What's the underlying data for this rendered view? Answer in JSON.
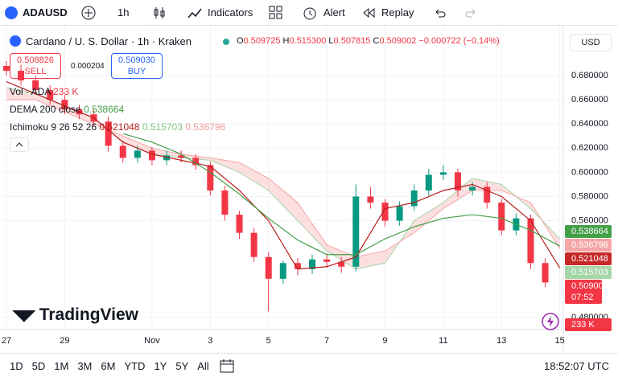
{
  "toolbar": {
    "symbol": "ADAUSD",
    "interval": "1h",
    "indicators": "Indicators",
    "alert": "Alert",
    "replay": "Replay"
  },
  "legend": {
    "title": "Cardano / U. S. Dollar · 1h · Kraken",
    "o_label": "O",
    "o": "0.509725",
    "h_label": "H",
    "h": "0.515300",
    "l_label": "L",
    "l": "0.507815",
    "c_label": "C",
    "c": "0.509002",
    "change": "−0.000722 (−0.14%)",
    "sell_price": "0.508826",
    "sell": "SELL",
    "spread": "0.000204",
    "buy_price": "0.509030",
    "buy": "BUY",
    "vol_name": "Vol · ADA",
    "vol_value": "233 K",
    "dema_name": "DEMA 200 close",
    "dema_value": "0.538664",
    "ichimoku_name": "Ichimoku 9 26 52 26",
    "ichimoku_v1": "0.521048",
    "ichimoku_v2": "0.515703",
    "ichimoku_v3": "0.536796"
  },
  "currency": "USD",
  "price_tags": [
    {
      "label": "0.538664",
      "color": "#43a047"
    },
    {
      "label": "0.536796",
      "color": "#f5a6a6"
    },
    {
      "label": "0.521048",
      "color": "#c62828"
    },
    {
      "label": "0.515703",
      "color": "#a5d6a7"
    },
    {
      "label": "0.509002",
      "sub": "07:52",
      "color": "#f23645"
    },
    {
      "label": "233 K",
      "color": "#f23645"
    }
  ],
  "logo": "TradingView",
  "chart_data": {
    "type": "candlestick",
    "xlim": [
      -0.22,
      19.12
    ],
    "ylim": [
      0.47,
      0.7013
    ],
    "xticks": [
      {
        "value": 0,
        "label": "27"
      },
      {
        "value": 2,
        "label": "29"
      },
      {
        "value": 5,
        "label": "Nov"
      },
      {
        "value": 7,
        "label": "3"
      },
      {
        "value": 9,
        "label": "5"
      },
      {
        "value": 11,
        "label": "7"
      },
      {
        "value": 13,
        "label": "9"
      },
      {
        "value": 15,
        "label": "11"
      },
      {
        "value": 17,
        "label": "13"
      },
      {
        "value": 19,
        "label": "15"
      }
    ],
    "yticks": [
      {
        "value": 0.68,
        "label": "0.680000"
      },
      {
        "value": 0.66,
        "label": "0.660000"
      },
      {
        "value": 0.64,
        "label": "0.640000"
      },
      {
        "value": 0.62,
        "label": "0.620000"
      },
      {
        "value": 0.6,
        "label": "0.600000"
      },
      {
        "value": 0.58,
        "label": "0.580000"
      },
      {
        "value": 0.56,
        "label": "0.560000"
      },
      {
        "value": 0.48,
        "label": "0.480000"
      }
    ],
    "up_color": "#089981",
    "down_color": "#f23645",
    "candles": {
      "x": [
        0,
        0.5,
        1,
        1.5,
        2,
        2.5,
        3,
        3.5,
        4,
        4.5,
        5,
        5.5,
        6,
        6.5,
        7,
        7.5,
        8,
        8.5,
        9,
        9.5,
        10,
        10.5,
        11,
        11.5,
        12,
        12.5,
        13,
        13.5,
        14,
        14.5,
        15,
        15.5,
        16,
        16.5,
        17,
        17.5,
        18,
        18.5
      ],
      "open": [
        0.688,
        0.684,
        0.676,
        0.668,
        0.66,
        0.652,
        0.648,
        0.642,
        0.622,
        0.612,
        0.618,
        0.61,
        0.614,
        0.612,
        0.606,
        0.585,
        0.565,
        0.55,
        0.53,
        0.512,
        0.525,
        0.52,
        0.528,
        0.526,
        0.522,
        0.58,
        0.575,
        0.56,
        0.572,
        0.585,
        0.598,
        0.6,
        0.585,
        0.588,
        0.575,
        0.552,
        0.562,
        0.525
      ],
      "high": [
        0.692,
        0.689,
        0.68,
        0.672,
        0.664,
        0.656,
        0.652,
        0.646,
        0.626,
        0.622,
        0.621,
        0.618,
        0.618,
        0.615,
        0.609,
        0.589,
        0.568,
        0.554,
        0.534,
        0.527,
        0.529,
        0.532,
        0.533,
        0.53,
        0.59,
        0.588,
        0.578,
        0.576,
        0.59,
        0.603,
        0.606,
        0.603,
        0.592,
        0.592,
        0.578,
        0.566,
        0.565,
        0.529
      ],
      "low": [
        0.68,
        0.672,
        0.664,
        0.656,
        0.648,
        0.644,
        0.638,
        0.617,
        0.608,
        0.608,
        0.606,
        0.606,
        0.608,
        0.602,
        0.581,
        0.56,
        0.545,
        0.526,
        0.485,
        0.508,
        0.515,
        0.516,
        0.521,
        0.517,
        0.518,
        0.57,
        0.555,
        0.556,
        0.568,
        0.581,
        0.594,
        0.58,
        0.581,
        0.57,
        0.548,
        0.548,
        0.52,
        0.505
      ],
      "close": [
        0.684,
        0.676,
        0.668,
        0.66,
        0.652,
        0.648,
        0.642,
        0.622,
        0.612,
        0.618,
        0.61,
        0.614,
        0.612,
        0.606,
        0.585,
        0.565,
        0.55,
        0.53,
        0.512,
        0.525,
        0.52,
        0.528,
        0.526,
        0.522,
        0.58,
        0.575,
        0.56,
        0.572,
        0.585,
        0.598,
        0.6,
        0.585,
        0.588,
        0.575,
        0.552,
        0.562,
        0.525,
        0.509
      ]
    },
    "dema": {
      "color": "#43a047",
      "x": [
        4,
        5,
        6,
        7,
        8,
        9,
        10,
        11,
        12,
        13,
        14,
        15,
        16,
        17,
        18,
        19
      ],
      "values": [
        0.632,
        0.625,
        0.615,
        0.6,
        0.582,
        0.562,
        0.544,
        0.532,
        0.532,
        0.545,
        0.555,
        0.562,
        0.565,
        0.562,
        0.552,
        0.539
      ]
    },
    "ichimoku": {
      "x": [
        0,
        1,
        2,
        3,
        4,
        5,
        6,
        7,
        8,
        9,
        10,
        11,
        12,
        13,
        14,
        15,
        16,
        17,
        18,
        19
      ],
      "conversion": {
        "color": "#b71c1c",
        "values": [
          0.675,
          0.665,
          0.655,
          0.645,
          0.625,
          0.615,
          0.61,
          0.605,
          0.585,
          0.56,
          0.52,
          0.522,
          0.53,
          0.57,
          0.575,
          0.585,
          0.59,
          0.58,
          0.56,
          0.521
        ]
      },
      "span_a": {
        "color": "#a5d6a7",
        "values": [
          0.67,
          0.665,
          0.655,
          0.645,
          0.625,
          0.615,
          0.612,
          0.61,
          0.6,
          0.585,
          0.56,
          0.535,
          0.52,
          0.525,
          0.56,
          0.575,
          0.595,
          0.59,
          0.57,
          0.545
        ]
      },
      "span_b": {
        "color": "#f5a6a6",
        "values": [
          0.66,
          0.66,
          0.65,
          0.64,
          0.63,
          0.62,
          0.615,
          0.612,
          0.608,
          0.595,
          0.575,
          0.54,
          0.53,
          0.535,
          0.55,
          0.57,
          0.585,
          0.585,
          0.575,
          0.537
        ]
      }
    }
  },
  "bottom_bar": {
    "ranges": [
      "1D",
      "5D",
      "1M",
      "3M",
      "6M",
      "YTD",
      "1Y",
      "5Y",
      "All"
    ],
    "time": "18:52:07 UTC"
  }
}
